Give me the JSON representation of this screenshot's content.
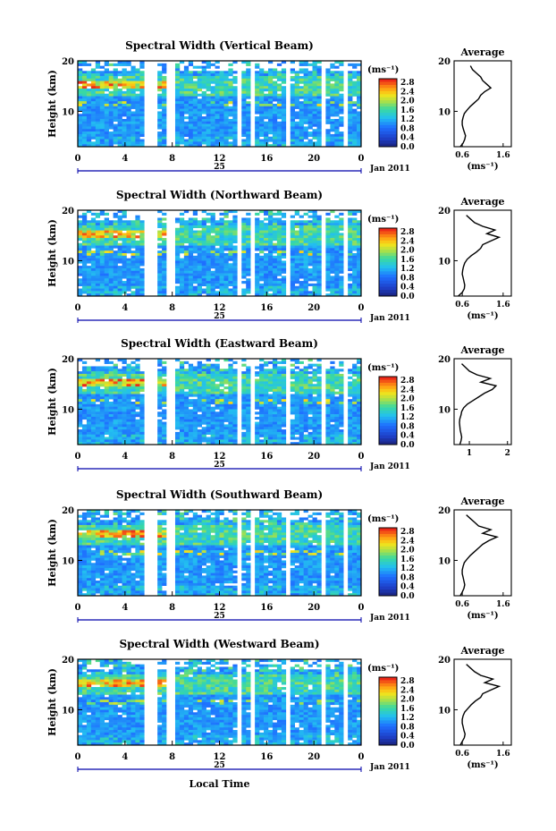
{
  "figure": {
    "date_label": "25",
    "month_year": "Jan 2011",
    "xlabel": "Local Time",
    "ylabel": "Height (km)",
    "unit": "(ms⁻¹)",
    "avg_title": "Average",
    "avg_unit": "(ms⁻¹)"
  },
  "chart_data": [
    {
      "type": "heatmap",
      "title": "Spectral Width (Vertical Beam)",
      "x_ticks": [
        "0",
        "4",
        "8",
        "12",
        "16",
        "20",
        "0"
      ],
      "y_ticks": [
        "20",
        "10"
      ],
      "xlim": [
        0,
        24
      ],
      "ylim": [
        3,
        20
      ],
      "colorbar_ticks": [
        "2.8",
        "2.4",
        "2.0",
        "1.6",
        "1.2",
        "0.8",
        "0.4",
        "0.0"
      ],
      "avg_ticks": [
        "0.6",
        "1.6"
      ],
      "avg_xlim": [
        0.4,
        1.8
      ],
      "avg_profile": [
        0.55,
        0.62,
        0.66,
        0.68,
        0.65,
        0.62,
        0.6,
        0.6,
        0.62,
        0.65,
        0.72,
        0.8,
        0.9,
        1.0,
        1.05,
        1.15,
        1.3,
        1.2,
        1.1,
        1.05,
        0.95,
        0.85,
        0.8
      ],
      "show_avg_unit": true
    },
    {
      "type": "heatmap",
      "title": "Spectral Width (Northward Beam)",
      "x_ticks": [
        "0",
        "4",
        "8",
        "12",
        "16",
        "20",
        "0"
      ],
      "y_ticks": [
        "20",
        "10"
      ],
      "xlim": [
        0,
        24
      ],
      "ylim": [
        3,
        20
      ],
      "colorbar_ticks": [
        "2.8",
        "2.4",
        "2.0",
        "1.6",
        "1.2",
        "0.8",
        "0.4",
        "0.0"
      ],
      "avg_ticks": [
        "0.6",
        "1.6"
      ],
      "avg_xlim": [
        0.4,
        1.8
      ],
      "avg_profile": [
        0.5,
        0.6,
        0.65,
        0.66,
        0.64,
        0.62,
        0.6,
        0.61,
        0.63,
        0.66,
        0.72,
        0.82,
        0.95,
        1.05,
        1.1,
        1.3,
        1.5,
        1.2,
        1.4,
        1.1,
        0.9,
        0.8,
        0.7
      ],
      "show_avg_unit": true
    },
    {
      "type": "heatmap",
      "title": "Spectral Width (Eastward Beam)",
      "x_ticks": [
        "0",
        "4",
        "8",
        "12",
        "16",
        "20",
        "0"
      ],
      "y_ticks": [
        "20",
        "10"
      ],
      "xlim": [
        0,
        24
      ],
      "ylim": [
        3,
        20
      ],
      "colorbar_ticks": [
        "2.8",
        "2.4",
        "2.0",
        "1.6",
        "1.2",
        "0.8",
        "0.4",
        "0.0"
      ],
      "avg_ticks": [
        "1",
        "2"
      ],
      "avg_xlim": [
        0.6,
        2.1
      ],
      "avg_profile": [
        0.75,
        0.78,
        0.8,
        0.78,
        0.76,
        0.75,
        0.74,
        0.75,
        0.78,
        0.8,
        0.85,
        0.95,
        1.1,
        1.25,
        1.4,
        1.6,
        1.7,
        1.3,
        1.55,
        1.2,
        1.0,
        0.9,
        0.8
      ],
      "show_avg_unit": false
    },
    {
      "type": "heatmap",
      "title": "Spectral Width (Southward Beam)",
      "x_ticks": [
        "0",
        "4",
        "8",
        "12",
        "16",
        "20",
        "0"
      ],
      "y_ticks": [
        "20",
        "10"
      ],
      "xlim": [
        0,
        24
      ],
      "ylim": [
        3,
        20
      ],
      "colorbar_ticks": [
        "2.8",
        "2.4",
        "2.0",
        "1.6",
        "1.2",
        "0.8",
        "0.4",
        "0.0"
      ],
      "avg_ticks": [
        "0.6",
        "1.6"
      ],
      "avg_xlim": [
        0.4,
        1.8
      ],
      "avg_profile": [
        0.55,
        0.6,
        0.64,
        0.66,
        0.64,
        0.62,
        0.6,
        0.6,
        0.62,
        0.65,
        0.72,
        0.8,
        0.9,
        1.0,
        1.1,
        1.25,
        1.45,
        1.1,
        1.3,
        1.0,
        0.9,
        0.8,
        0.7
      ],
      "show_avg_unit": true
    },
    {
      "type": "heatmap",
      "title": "Spectral Width (Westward Beam)",
      "x_ticks": [
        "0",
        "4",
        "8",
        "12",
        "16",
        "20",
        "0"
      ],
      "y_ticks": [
        "20",
        "10"
      ],
      "xlim": [
        0,
        24
      ],
      "ylim": [
        3,
        20
      ],
      "colorbar_ticks": [
        "2.8",
        "2.4",
        "2.0",
        "1.6",
        "1.2",
        "0.8",
        "0.4",
        "0.0"
      ],
      "avg_ticks": [
        "0.6",
        "1.6"
      ],
      "avg_xlim": [
        0.4,
        1.8
      ],
      "avg_profile": [
        0.55,
        0.6,
        0.65,
        0.67,
        0.64,
        0.62,
        0.6,
        0.6,
        0.62,
        0.66,
        0.74,
        0.82,
        0.92,
        1.05,
        1.1,
        1.3,
        1.5,
        1.15,
        1.35,
        1.05,
        0.9,
        0.8,
        0.7
      ],
      "show_avg_unit": true
    }
  ]
}
